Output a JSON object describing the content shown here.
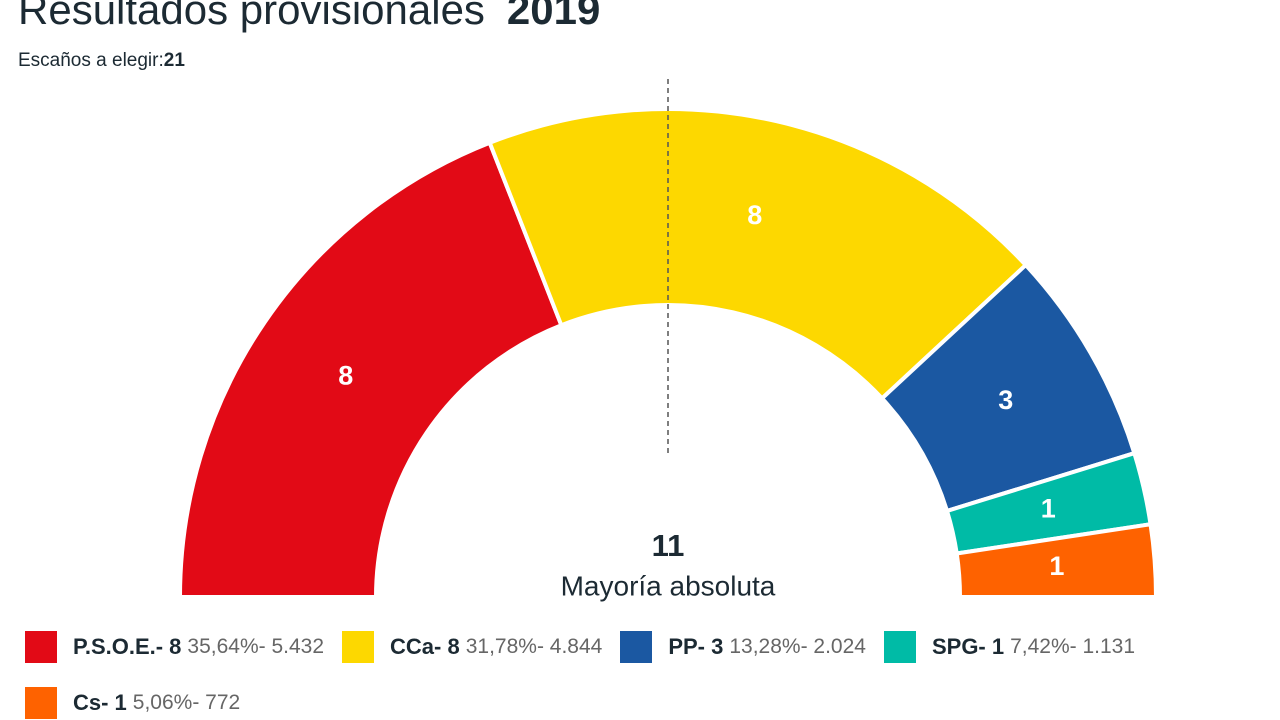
{
  "chart_data": {
    "type": "parliament",
    "title": "Resultados provisionales",
    "year": "2019",
    "subtitle": "Escaños a elegir:",
    "total_seats": 21,
    "majority": 11,
    "majority_label": "Mayoría absoluta",
    "values": [
      8,
      8,
      3,
      1,
      1
    ],
    "colors": [
      "#e20a16",
      "#fdd800",
      "#1b58a2",
      "#00bba6",
      "#fe6200"
    ],
    "legend_labels": [
      "P.S.O.E.- 8",
      "CCa- 8",
      "PP- 3",
      "SPG- 1",
      "Cs- 1"
    ],
    "legend_details": [
      "35,64%- 5.432",
      "31,78%- 4.844",
      "13,28%- 2.024",
      "7,42%- 1.131",
      "5,06%- 772"
    ]
  }
}
